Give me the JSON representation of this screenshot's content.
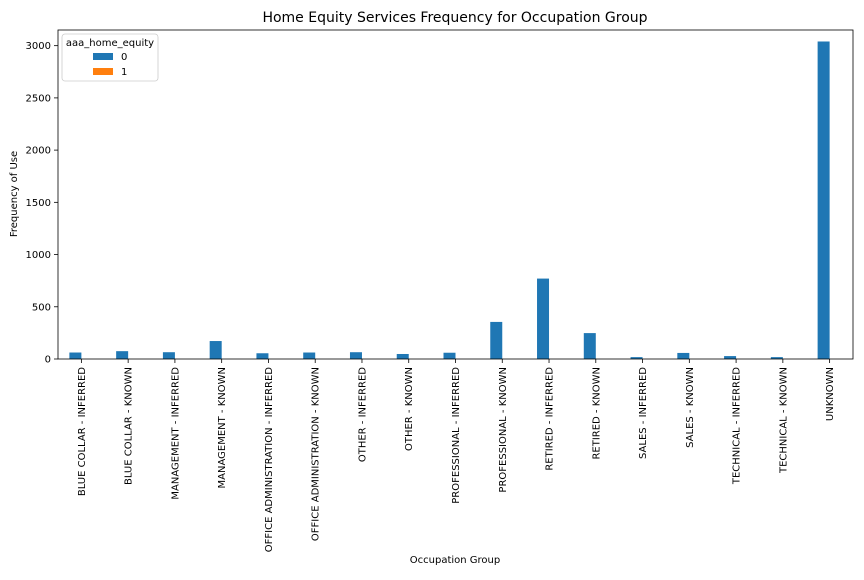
{
  "chart_data": {
    "type": "bar",
    "title": "Home Equity Services Frequency for Occupation Group",
    "xlabel": "Occupation Group",
    "ylabel": "Frequency of Use",
    "ylim": [
      0,
      3150
    ],
    "yticks": [
      0,
      500,
      1000,
      1500,
      2000,
      2500,
      3000
    ],
    "grid": false,
    "legend": {
      "title": "aaa_home_equity",
      "placement": "top-left"
    },
    "categories": [
      "BLUE COLLAR - INFERRED",
      "BLUE COLLAR - KNOWN",
      "MANAGEMENT - INFERRED",
      "MANAGEMENT - KNOWN",
      "OFFICE ADMINISTRATION - INFERRED",
      "OFFICE ADMINISTRATION - KNOWN",
      "OTHER - INFERRED",
      "OTHER - KNOWN",
      "PROFESSIONAL - INFERRED",
      "PROFESSIONAL - KNOWN",
      "RETIRED - INFERRED",
      "RETIRED - KNOWN",
      "SALES - INFERRED",
      "SALES - KNOWN",
      "TECHNICAL - INFERRED",
      "TECHNICAL - KNOWN",
      "UNKNOWN"
    ],
    "series": [
      {
        "name": "0",
        "color": "#1f77b4",
        "values": [
          62,
          75,
          65,
          172,
          55,
          62,
          65,
          48,
          60,
          355,
          770,
          248,
          18,
          58,
          28,
          18,
          3040
        ]
      },
      {
        "name": "1",
        "color": "#ff7f0e",
        "values": [
          0,
          0,
          0,
          0,
          0,
          0,
          0,
          0,
          0,
          0,
          0,
          0,
          0,
          0,
          0,
          0,
          0
        ]
      }
    ]
  }
}
